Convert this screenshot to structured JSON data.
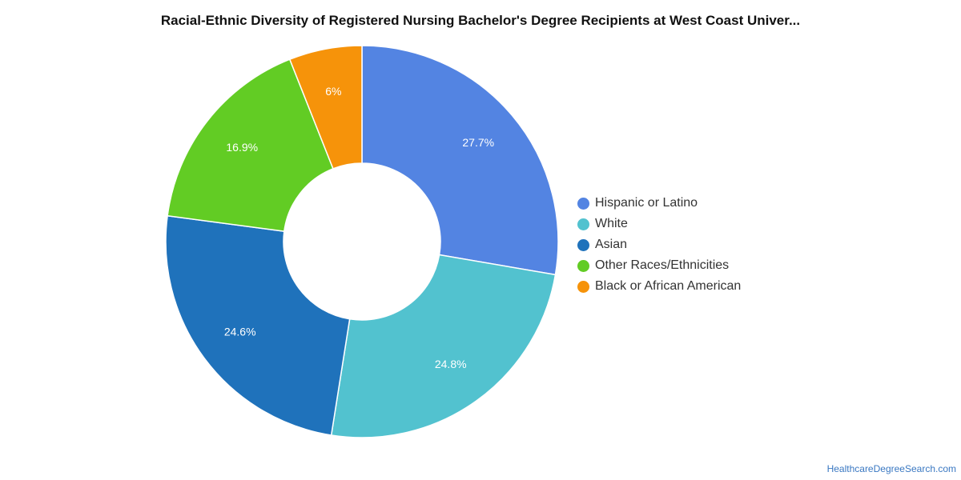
{
  "chart_data": {
    "type": "pie",
    "variant": "donut",
    "title": "Racial-Ethnic Diversity of Registered Nursing Bachelor's Degree Recipients at West Coast Univer...",
    "categories": [
      "Hispanic or Latino",
      "White",
      "Asian",
      "Other Races/Ethnicities",
      "Black or African American"
    ],
    "values": [
      27.7,
      24.8,
      24.6,
      16.9,
      6.0
    ],
    "value_labels": [
      "27.7%",
      "24.8%",
      "24.6%",
      "16.9%",
      "6%"
    ],
    "colors": [
      "#5384e2",
      "#52c2cf",
      "#1f72bb",
      "#62cc24",
      "#f6930a"
    ],
    "legend_position": "right"
  },
  "footer": {
    "source": "HealthcareDegreeSearch.com"
  }
}
